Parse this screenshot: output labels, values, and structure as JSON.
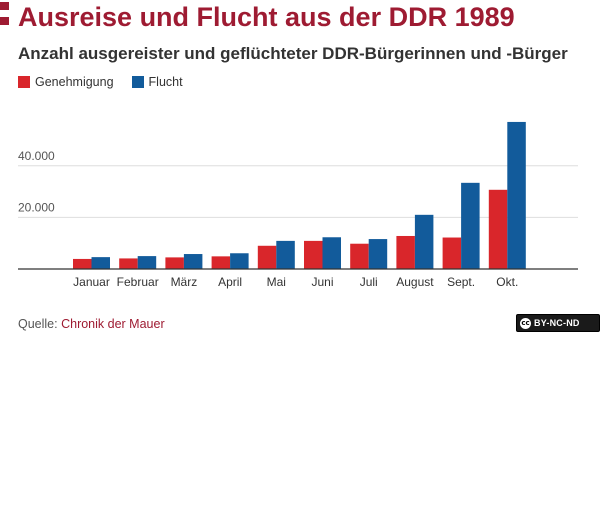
{
  "header": {
    "title": "Ausreise und Flucht aus der DDR 1989",
    "subtitle": "Anzahl ausgereister und geflüchteter DDR-Bürgerinnen und -Bürger"
  },
  "source": {
    "label": "Quelle:",
    "link_text": "Chronik der Mauer"
  },
  "license": {
    "icon": "creative-commons-icon",
    "text": "BY-NC-ND"
  },
  "colors": {
    "accent": "#9e1b32",
    "genehmigung": "#d9262b",
    "flucht": "#125b9b"
  },
  "chart_data": {
    "type": "bar",
    "categories": [
      "Januar",
      "Februar",
      "März",
      "April",
      "Mai",
      "Juni",
      "Juli",
      "August",
      "Sept.",
      "Okt."
    ],
    "series": [
      {
        "name": "Genehmigung",
        "color": "#d9262b",
        "values": [
          3900,
          4100,
          4500,
          4900,
          9000,
          10900,
          9800,
          12800,
          12200,
          30700
        ]
      },
      {
        "name": "Flucht",
        "color": "#125b9b",
        "values": [
          4600,
          5000,
          5800,
          6100,
          10900,
          12300,
          11600,
          21000,
          33400,
          57000
        ]
      }
    ],
    "ytick_labels": [
      "20.000",
      "40.000"
    ],
    "yticks": [
      20000,
      40000
    ],
    "ylim": [
      0,
      60000
    ],
    "grid": true,
    "legend_position": "top-left",
    "xlabel": "",
    "ylabel": ""
  }
}
